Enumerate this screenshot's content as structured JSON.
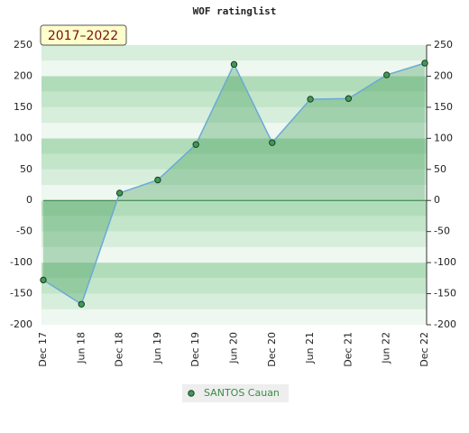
{
  "chart_data": {
    "type": "area",
    "title": "WOF ratinglist",
    "badge": "2017–2022",
    "categories": [
      "Dec 17",
      "Jun 18",
      "Dec 18",
      "Jun 19",
      "Dec 19",
      "Jun 20",
      "Dec 20",
      "Jun 21",
      "Dec 21",
      "Jun 22",
      "Dec 22"
    ],
    "series": [
      {
        "name": "SANTOS Cauan",
        "color": "#3f9a55",
        "values": [
          -128,
          -167,
          12,
          33,
          90,
          219,
          93,
          163,
          164,
          202,
          221
        ]
      }
    ],
    "ylim": [
      -200,
      250
    ],
    "yticks": [
      -200,
      -150,
      -100,
      -50,
      0,
      50,
      100,
      150,
      200,
      250
    ],
    "legend": "bottom"
  }
}
